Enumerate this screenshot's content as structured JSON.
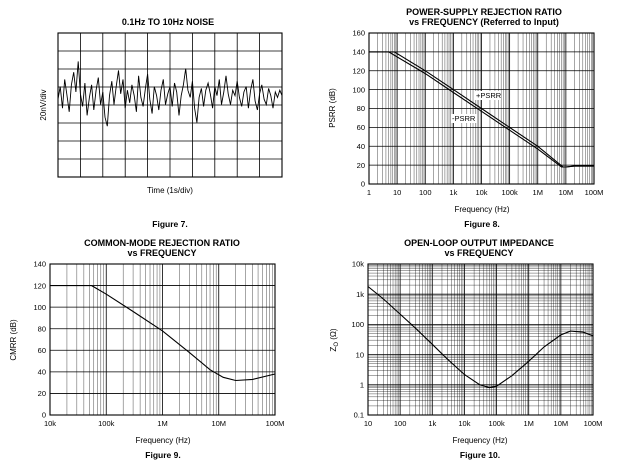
{
  "chart_data": [
    {
      "id": "noise",
      "type": "line",
      "title": "0.1Hz TO 10Hz NOISE",
      "xlabel": "Time (1s/div)",
      "ylabel": "20nV/div",
      "caption": "Figure 7.",
      "x_divisions": 10,
      "y_divisions": 8,
      "series": [
        {
          "name": "noise",
          "x": [
            0,
            0.1,
            0.2,
            0.3,
            0.4,
            0.5,
            0.6,
            0.7,
            0.8,
            0.9,
            1.0,
            1.1,
            1.2,
            1.3,
            1.4,
            1.5,
            1.6,
            1.7,
            1.8,
            1.9,
            2.0,
            2.1,
            2.2,
            2.3,
            2.4,
            2.5,
            2.6,
            2.7,
            2.8,
            2.9,
            3.0,
            3.1,
            3.2,
            3.3,
            3.4,
            3.5,
            3.6,
            3.7,
            3.8,
            3.9,
            4.0,
            4.1,
            4.2,
            4.3,
            4.4,
            4.5,
            4.6,
            4.7,
            4.8,
            4.9,
            5.0,
            5.1,
            5.2,
            5.3,
            5.4,
            5.5,
            5.6,
            5.7,
            5.8,
            5.9,
            6.0,
            6.1,
            6.2,
            6.3,
            6.4,
            6.5,
            6.6,
            6.7,
            6.8,
            6.9,
            7.0,
            7.1,
            7.2,
            7.3,
            7.4,
            7.5,
            7.6,
            7.7,
            7.8,
            7.9,
            8.0,
            8.1,
            8.2,
            8.3,
            8.4,
            8.5,
            8.6,
            8.7,
            8.8,
            8.9,
            9.0,
            9.1,
            9.2,
            9.3,
            9.4,
            9.5,
            9.6,
            9.7,
            9.8,
            9.9,
            10.0
          ],
          "values": [
            0.1,
            0.8,
            -0.4,
            1.2,
            0.3,
            -0.6,
            0.9,
            1.6,
            0.5,
            2.2,
            0.4,
            -0.3,
            1.0,
            -0.8,
            0.2,
            0.9,
            -0.5,
            0.6,
            1.3,
            -0.2,
            0.5,
            -0.9,
            -1.4,
            0.3,
            1.1,
            -0.2,
            0.8,
            1.7,
            0.4,
            1.2,
            -0.4,
            0.6,
            -0.1,
            0.9,
            0.3,
            -0.6,
            1.4,
            0.2,
            -0.3,
            0.7,
            1.5,
            0.1,
            -0.7,
            0.8,
            0.3,
            -0.5,
            0.6,
            1.2,
            -0.2,
            0.4,
            0.8,
            -0.3,
            1.0,
            0.5,
            -0.8,
            0.3,
            0.9,
            1.8,
            0.6,
            0.2,
            1.1,
            -0.4,
            -1.2,
            0.2,
            0.7,
            -0.3,
            0.6,
            1.0,
            0.4,
            -0.4,
            0.8,
            0.3,
            1.2,
            -0.2,
            0.5,
            1.4,
            0.4,
            -0.2,
            0.6,
            0.3,
            1.1,
            0.2,
            -0.3,
            0.5,
            0.8,
            -0.4,
            0.6,
            1.2,
            0.0,
            -0.5,
            0.4,
            0.9,
            0.1,
            -0.2,
            0.7,
            0.3,
            -0.4,
            0.5,
            0.2,
            0.6,
            0.3
          ]
        }
      ]
    },
    {
      "id": "psrr",
      "type": "line",
      "title": "POWER-SUPPLY REJECTION RATIO",
      "subtitle": "vs FREQUENCY (Referred to Input)",
      "xlabel": "Frequency (Hz)",
      "ylabel": "PSRR (dB)",
      "caption": "Figure 8.",
      "xscale": "log",
      "xlim": [
        1,
        100000000
      ],
      "ylim": [
        0,
        160
      ],
      "xticks": [
        1,
        10,
        100,
        1000,
        10000,
        100000,
        1000000,
        10000000,
        100000000
      ],
      "xticklabels": [
        "1",
        "10",
        "100",
        "1k",
        "10k",
        "100k",
        "1M",
        "10M",
        "100M"
      ],
      "yticks": [
        0,
        20,
        40,
        60,
        80,
        100,
        120,
        140,
        160
      ],
      "yticklabels": [
        "0",
        "20",
        "40",
        "60",
        "80",
        "100",
        "120",
        "140",
        "160"
      ],
      "series": [
        {
          "name": "+PSRR",
          "x": [
            1,
            8,
            100,
            1000,
            10000,
            100000,
            1000000,
            8000000,
            10000000,
            20000000,
            50000000,
            100000000
          ],
          "values": [
            140,
            140,
            120,
            100,
            80,
            60,
            40,
            18,
            18,
            19,
            19,
            19
          ]
        },
        {
          "name": "-PSRR",
          "x": [
            1,
            5,
            100,
            1000,
            10000,
            100000,
            1000000,
            7000000,
            10000000,
            20000000,
            50000000,
            100000000
          ],
          "values": [
            140,
            140,
            117,
            97,
            77,
            57,
            37,
            18,
            18,
            19,
            19,
            19
          ]
        }
      ],
      "annotations": [
        "+PSRR",
        "-PSRR"
      ]
    },
    {
      "id": "cmrr",
      "type": "line",
      "title": "COMMON-MODE REJECTION RATIO",
      "subtitle": "vs FREQUENCY",
      "xlabel": "Frequency (Hz)",
      "ylabel": "CMRR (dB)",
      "caption": "Figure 9.",
      "xscale": "log",
      "xlim": [
        10000,
        100000000
      ],
      "ylim": [
        0,
        140
      ],
      "xticks": [
        10000,
        100000,
        1000000,
        10000000,
        100000000
      ],
      "xticklabels": [
        "10k",
        "100k",
        "1M",
        "10M",
        "100M"
      ],
      "yticks": [
        0,
        20,
        40,
        60,
        80,
        100,
        120,
        140
      ],
      "yticklabels": [
        "0",
        "20",
        "40",
        "60",
        "80",
        "100",
        "120",
        "140"
      ],
      "series": [
        {
          "name": "CMRR",
          "x": [
            10000,
            20000,
            55000,
            100000,
            300000,
            1000000,
            3000000,
            7000000,
            12000000,
            20000000,
            40000000,
            100000000
          ],
          "values": [
            120,
            120,
            120,
            112,
            96,
            78,
            58,
            42,
            35,
            32,
            33,
            38
          ]
        }
      ]
    },
    {
      "id": "zo",
      "type": "line",
      "title": "OPEN-LOOP OUTPUT IMPEDANCE",
      "subtitle": "vs FREQUENCY",
      "xlabel": "Frequency (Hz)",
      "ylabel": "Z_O (Ω)",
      "ylabel_main": "Z",
      "ylabel_sub": "O",
      "ylabel_unit": "(Ω)",
      "caption": "Figure 10.",
      "xscale": "log",
      "yscale": "log",
      "xlim": [
        10,
        100000000
      ],
      "ylim": [
        0.1,
        10000
      ],
      "xticks": [
        10,
        100,
        1000,
        10000,
        100000,
        1000000,
        10000000,
        100000000
      ],
      "xticklabels": [
        "10",
        "100",
        "1k",
        "10k",
        "100k",
        "1M",
        "10M",
        "100M"
      ],
      "yticks": [
        0.1,
        1,
        10,
        100,
        1000,
        10000
      ],
      "yticklabels": [
        "0.1",
        "1",
        "10",
        "100",
        "1k",
        "10k"
      ],
      "series": [
        {
          "name": "Zo",
          "x": [
            10,
            30,
            100,
            300,
            1000,
            3000,
            10000,
            30000,
            60000,
            100000,
            300000,
            1000000,
            3000000,
            10000000,
            20000000,
            50000000,
            100000000
          ],
          "values": [
            1800,
            700,
            220,
            75,
            22,
            7,
            2.2,
            1.0,
            0.8,
            0.9,
            2.0,
            6,
            18,
            45,
            60,
            55,
            42
          ]
        }
      ]
    }
  ]
}
